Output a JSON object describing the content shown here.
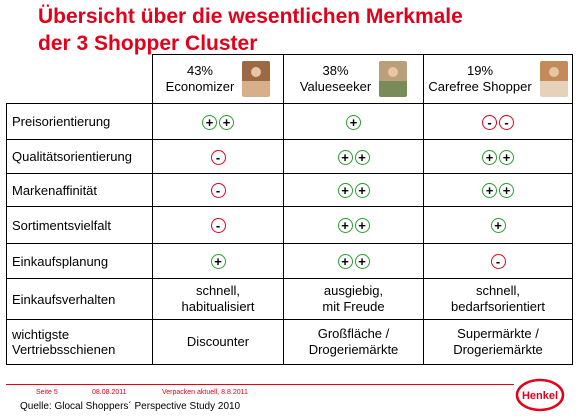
{
  "title": {
    "line1": "Übersicht über die wesentlichen Merkmale",
    "line2": "der 3 Shopper Cluster"
  },
  "segments": [
    {
      "percent": "43%",
      "name": "Economizer"
    },
    {
      "percent": "38%",
      "name": "Valueseeker"
    },
    {
      "percent": "19%",
      "name": "Carefree Shopper"
    }
  ],
  "rows": [
    {
      "label": "Preisorientierung",
      "values": [
        [
          "+",
          "+"
        ],
        [
          "+"
        ],
        [
          "-",
          "-"
        ]
      ]
    },
    {
      "label": "Qualitätsorientierung",
      "values": [
        [
          "-"
        ],
        [
          "+",
          "+"
        ],
        [
          "+",
          "+"
        ]
      ]
    },
    {
      "label": "Markenaffinität",
      "values": [
        [
          "-"
        ],
        [
          "+",
          "+"
        ],
        [
          "+",
          "+"
        ]
      ]
    },
    {
      "label": "Sortimentsvielfalt",
      "values": [
        [
          "-"
        ],
        [
          "+",
          "+"
        ],
        [
          "+"
        ]
      ]
    },
    {
      "label": "Einkaufsplanung",
      "values": [
        [
          "+"
        ],
        [
          "+",
          "+"
        ],
        [
          "-"
        ]
      ]
    },
    {
      "label": "Einkaufsverhalten",
      "values": [
        "schnell,\nhabitualisiert",
        "ausgiebig,\nmit Freude",
        "schnell,\nbedarfsorientiert"
      ]
    },
    {
      "label": "wichtigste\nVertriebsschienen",
      "values": [
        "Discounter",
        "Großfläche /\nDrogeriemärkte",
        "Supermärkte /\nDrogeriemärkte"
      ]
    }
  ],
  "footer": {
    "page": "Seite 5",
    "date": "08.08.2011",
    "note": "Verpacken aktuell, 8.8.2011",
    "source": "Quelle: Glocal Shoppers´ Perspective Study 2010"
  },
  "logo": {
    "text": "Henkel",
    "color": "#e2001a"
  },
  "colors": {
    "accent": "#e2001a",
    "plus": "#2a9d2a",
    "minus": "#e2001a"
  }
}
